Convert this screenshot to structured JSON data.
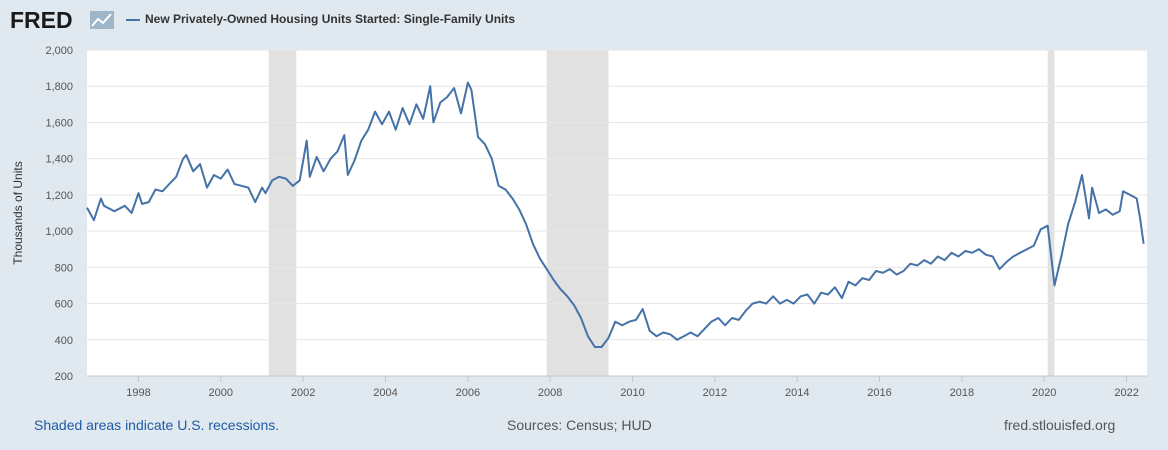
{
  "logo": {
    "text": "FRED"
  },
  "footer": {
    "recession_note": "Shaded areas indicate U.S. recessions.",
    "sources": "Sources: Census; HUD",
    "site": "fred.stlouisfed.org"
  },
  "colors": {
    "background": "#e1e9f0",
    "plot": "#ffffff",
    "line": "#4572a7",
    "recession": "#e1e1e1"
  },
  "chart_data": {
    "type": "line",
    "title": "New Privately-Owned Housing Units Started: Single-Family Units",
    "ylabel": "Thousands of Units",
    "xlabel": "",
    "xlim": [
      "1996-10-01",
      "2022-07-01"
    ],
    "ylim": [
      200,
      2000
    ],
    "x_ticks": [
      "1998",
      "2000",
      "2002",
      "2004",
      "2006",
      "2008",
      "2010",
      "2012",
      "2014",
      "2016",
      "2018",
      "2020",
      "2022"
    ],
    "y_ticks": [
      "200",
      "400",
      "600",
      "800",
      "1,000",
      "1,200",
      "1,400",
      "1,600",
      "1,800",
      "2,000"
    ],
    "grid": "horizontal",
    "legend": "top-left",
    "recessions": [
      {
        "start": "2001-03-01",
        "end": "2001-11-01"
      },
      {
        "start": "2007-12-01",
        "end": "2009-06-01"
      },
      {
        "start": "2020-02-01",
        "end": "2020-04-01"
      }
    ],
    "series": [
      {
        "name": "New Privately-Owned Housing Units Started: Single-Family Units",
        "points": [
          [
            "1996-10-01",
            1130
          ],
          [
            "1996-12-01",
            1060
          ],
          [
            "1997-02-01",
            1180
          ],
          [
            "1997-03-01",
            1140
          ],
          [
            "1997-06-01",
            1110
          ],
          [
            "1997-09-01",
            1140
          ],
          [
            "1997-11-01",
            1100
          ],
          [
            "1998-01-01",
            1210
          ],
          [
            "1998-02-01",
            1150
          ],
          [
            "1998-04-01",
            1160
          ],
          [
            "1998-06-01",
            1230
          ],
          [
            "1998-08-01",
            1220
          ],
          [
            "1998-10-01",
            1260
          ],
          [
            "1998-12-01",
            1300
          ],
          [
            "1999-02-01",
            1400
          ],
          [
            "1999-03-01",
            1420
          ],
          [
            "1999-05-01",
            1330
          ],
          [
            "1999-07-01",
            1370
          ],
          [
            "1999-09-01",
            1240
          ],
          [
            "1999-11-01",
            1310
          ],
          [
            "2000-01-01",
            1290
          ],
          [
            "2000-03-01",
            1340
          ],
          [
            "2000-05-01",
            1260
          ],
          [
            "2000-07-01",
            1250
          ],
          [
            "2000-09-01",
            1240
          ],
          [
            "2000-11-01",
            1160
          ],
          [
            "2001-01-01",
            1240
          ],
          [
            "2001-02-01",
            1210
          ],
          [
            "2001-04-01",
            1280
          ],
          [
            "2001-06-01",
            1300
          ],
          [
            "2001-08-01",
            1290
          ],
          [
            "2001-10-01",
            1250
          ],
          [
            "2001-12-01",
            1280
          ],
          [
            "2002-02-01",
            1500
          ],
          [
            "2002-03-01",
            1300
          ],
          [
            "2002-05-01",
            1410
          ],
          [
            "2002-07-01",
            1330
          ],
          [
            "2002-09-01",
            1400
          ],
          [
            "2002-11-01",
            1440
          ],
          [
            "2003-01-01",
            1530
          ],
          [
            "2003-02-01",
            1310
          ],
          [
            "2003-04-01",
            1390
          ],
          [
            "2003-06-01",
            1500
          ],
          [
            "2003-08-01",
            1560
          ],
          [
            "2003-10-01",
            1660
          ],
          [
            "2003-12-01",
            1590
          ],
          [
            "2004-02-01",
            1660
          ],
          [
            "2004-04-01",
            1560
          ],
          [
            "2004-06-01",
            1680
          ],
          [
            "2004-08-01",
            1590
          ],
          [
            "2004-10-01",
            1700
          ],
          [
            "2004-12-01",
            1620
          ],
          [
            "2005-02-01",
            1800
          ],
          [
            "2005-03-01",
            1600
          ],
          [
            "2005-05-01",
            1710
          ],
          [
            "2005-07-01",
            1740
          ],
          [
            "2005-09-01",
            1790
          ],
          [
            "2005-11-01",
            1650
          ],
          [
            "2006-01-01",
            1820
          ],
          [
            "2006-02-01",
            1780
          ],
          [
            "2006-04-01",
            1520
          ],
          [
            "2006-06-01",
            1480
          ],
          [
            "2006-08-01",
            1400
          ],
          [
            "2006-10-01",
            1250
          ],
          [
            "2006-12-01",
            1230
          ],
          [
            "2007-02-01",
            1180
          ],
          [
            "2007-04-01",
            1120
          ],
          [
            "2007-06-01",
            1040
          ],
          [
            "2007-08-01",
            930
          ],
          [
            "2007-10-01",
            850
          ],
          [
            "2007-12-01",
            790
          ],
          [
            "2008-02-01",
            730
          ],
          [
            "2008-04-01",
            680
          ],
          [
            "2008-06-01",
            640
          ],
          [
            "2008-08-01",
            590
          ],
          [
            "2008-10-01",
            520
          ],
          [
            "2008-12-01",
            420
          ],
          [
            "2009-02-01",
            360
          ],
          [
            "2009-04-01",
            360
          ],
          [
            "2009-06-01",
            410
          ],
          [
            "2009-08-01",
            500
          ],
          [
            "2009-10-01",
            480
          ],
          [
            "2009-12-01",
            500
          ],
          [
            "2010-02-01",
            510
          ],
          [
            "2010-04-01",
            570
          ],
          [
            "2010-06-01",
            450
          ],
          [
            "2010-08-01",
            420
          ],
          [
            "2010-10-01",
            440
          ],
          [
            "2010-12-01",
            430
          ],
          [
            "2011-02-01",
            400
          ],
          [
            "2011-04-01",
            420
          ],
          [
            "2011-06-01",
            440
          ],
          [
            "2011-08-01",
            420
          ],
          [
            "2011-10-01",
            460
          ],
          [
            "2011-12-01",
            500
          ],
          [
            "2012-02-01",
            520
          ],
          [
            "2012-04-01",
            480
          ],
          [
            "2012-06-01",
            520
          ],
          [
            "2012-08-01",
            510
          ],
          [
            "2012-10-01",
            560
          ],
          [
            "2012-12-01",
            600
          ],
          [
            "2013-02-01",
            610
          ],
          [
            "2013-04-01",
            600
          ],
          [
            "2013-06-01",
            640
          ],
          [
            "2013-08-01",
            600
          ],
          [
            "2013-10-01",
            620
          ],
          [
            "2013-12-01",
            600
          ],
          [
            "2014-02-01",
            640
          ],
          [
            "2014-04-01",
            650
          ],
          [
            "2014-06-01",
            600
          ],
          [
            "2014-08-01",
            660
          ],
          [
            "2014-10-01",
            650
          ],
          [
            "2014-12-01",
            690
          ],
          [
            "2015-02-01",
            630
          ],
          [
            "2015-04-01",
            720
          ],
          [
            "2015-06-01",
            700
          ],
          [
            "2015-08-01",
            740
          ],
          [
            "2015-10-01",
            730
          ],
          [
            "2015-12-01",
            780
          ],
          [
            "2016-02-01",
            770
          ],
          [
            "2016-04-01",
            790
          ],
          [
            "2016-06-01",
            760
          ],
          [
            "2016-08-01",
            780
          ],
          [
            "2016-10-01",
            820
          ],
          [
            "2016-12-01",
            810
          ],
          [
            "2017-02-01",
            840
          ],
          [
            "2017-04-01",
            820
          ],
          [
            "2017-06-01",
            860
          ],
          [
            "2017-08-01",
            840
          ],
          [
            "2017-10-01",
            880
          ],
          [
            "2017-12-01",
            860
          ],
          [
            "2018-02-01",
            890
          ],
          [
            "2018-04-01",
            880
          ],
          [
            "2018-06-01",
            900
          ],
          [
            "2018-08-01",
            870
          ],
          [
            "2018-10-01",
            860
          ],
          [
            "2018-12-01",
            790
          ],
          [
            "2019-02-01",
            830
          ],
          [
            "2019-04-01",
            860
          ],
          [
            "2019-06-01",
            880
          ],
          [
            "2019-08-01",
            900
          ],
          [
            "2019-10-01",
            920
          ],
          [
            "2019-12-01",
            1010
          ],
          [
            "2020-02-01",
            1030
          ],
          [
            "2020-04-01",
            700
          ],
          [
            "2020-06-01",
            860
          ],
          [
            "2020-08-01",
            1040
          ],
          [
            "2020-10-01",
            1160
          ],
          [
            "2020-12-01",
            1310
          ],
          [
            "2021-02-01",
            1070
          ],
          [
            "2021-03-01",
            1240
          ],
          [
            "2021-05-01",
            1100
          ],
          [
            "2021-07-01",
            1120
          ],
          [
            "2021-09-01",
            1090
          ],
          [
            "2021-11-01",
            1110
          ],
          [
            "2021-12-01",
            1220
          ],
          [
            "2022-02-01",
            1200
          ],
          [
            "2022-04-01",
            1180
          ],
          [
            "2022-05-01",
            1070
          ],
          [
            "2022-06-01",
            930
          ]
        ]
      }
    ]
  }
}
